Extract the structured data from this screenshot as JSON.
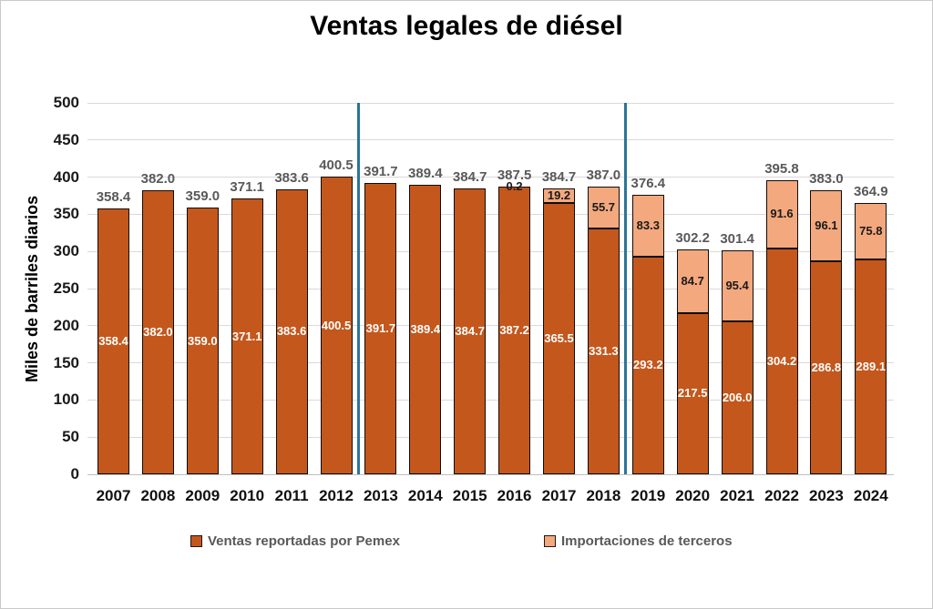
{
  "chart_data": {
    "type": "bar",
    "subtype": "stacked-column",
    "title": "Ventas legales de diésel",
    "ylabel": "Miles de barriles diarios",
    "ylim": [
      0,
      500
    ],
    "ytick_step": 50,
    "yticks": [
      0,
      50,
      100,
      150,
      200,
      250,
      300,
      350,
      400,
      450,
      500
    ],
    "grid": true,
    "legend_position": "bottom",
    "categories": [
      "2007",
      "2008",
      "2009",
      "2010",
      "2011",
      "2012",
      "2013",
      "2014",
      "2015",
      "2016",
      "2017",
      "2018",
      "2019",
      "2020",
      "2021",
      "2022",
      "2023",
      "2024"
    ],
    "series": [
      {
        "name": "Ventas reportadas por Pemex",
        "color": "#C4571C",
        "label_color": "#FFFFFF",
        "values": [
          358.4,
          382.0,
          359.0,
          371.1,
          383.6,
          400.5,
          391.7,
          389.4,
          384.7,
          387.2,
          365.5,
          331.3,
          293.2,
          217.5,
          206.0,
          304.2,
          286.8,
          289.1
        ]
      },
      {
        "name": "Importaciones de terceros",
        "color": "#F3A87E",
        "label_color": "#1A1A1A",
        "values": [
          0,
          0,
          0,
          0,
          0,
          0,
          0,
          0,
          0,
          0.2,
          19.2,
          55.7,
          83.3,
          84.7,
          95.4,
          91.6,
          96.1,
          75.8
        ]
      }
    ],
    "totals": [
      358.4,
      382.0,
      359.0,
      371.1,
      383.6,
      400.5,
      391.7,
      389.4,
      384.7,
      387.5,
      384.7,
      387.0,
      376.4,
      302.2,
      301.4,
      395.8,
      383.0,
      364.9
    ],
    "dividers": {
      "color": "#2B7496",
      "after_categories": [
        "2012",
        "2018"
      ]
    },
    "colors": {
      "gridline": "#D9D9D9",
      "axis_line": "#BFBFBF",
      "total_label": "#595959",
      "bar_border": "#0D0D0D",
      "legend_text": "#595959"
    }
  }
}
